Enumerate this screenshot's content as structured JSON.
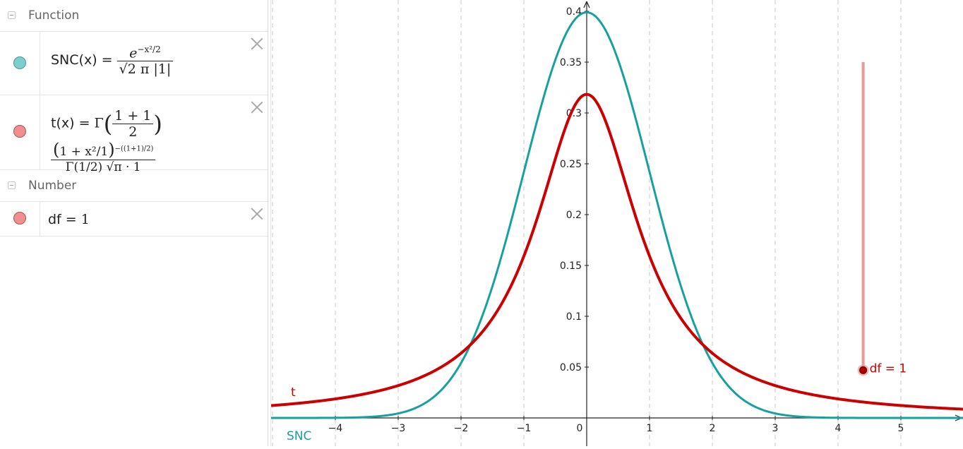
{
  "algebra": {
    "categories": [
      {
        "label": "Function"
      },
      {
        "label": "Number"
      }
    ],
    "items": [
      {
        "name": "SNC(x)",
        "equals": "=",
        "numerator_base": "e",
        "exponent": "−x²/2",
        "denominator": "√2 π |1|",
        "color": "#7ecece"
      },
      {
        "name": "t(x)",
        "equals": "=",
        "gamma": "Γ",
        "arg_top": "1 + 1",
        "arg_bottom": "2",
        "power_base": "1 + x²/1",
        "power_exp": "−((1+1)/2)",
        "denominator": "Γ(1/2) √π · 1",
        "color": "#f08f8f"
      },
      {
        "name": "df",
        "equals": "=",
        "value": "1",
        "color": "#f08f8f"
      }
    ]
  },
  "graphics": {
    "slider_label": "df = 1",
    "curve_labels": {
      "t": "t",
      "snc": "SNC"
    },
    "colors": {
      "snc": "#17a0a0",
      "t": "#cc0000",
      "slider": "#e89a9a"
    }
  },
  "chart_data": {
    "type": "line",
    "xlim": [
      -5,
      6
    ],
    "ylim": [
      -0.005,
      0.43
    ],
    "x_ticks": [
      "−4",
      "−3",
      "−2",
      "−1",
      "0",
      "1",
      "2",
      "3",
      "4",
      "5"
    ],
    "x_tick_values": [
      -4,
      -3,
      -2,
      -1,
      0,
      1,
      2,
      3,
      4,
      5
    ],
    "y_ticks": [
      "0.05",
      "0.1",
      "0.15",
      "0.2",
      "0.25",
      "0.3",
      "0.35",
      "0.4"
    ],
    "y_tick_values": [
      0.05,
      0.1,
      0.15,
      0.2,
      0.25,
      0.3,
      0.35,
      0.4
    ],
    "grid": "vertical-dashed",
    "series": [
      {
        "name": "SNC",
        "x": [
          -5,
          -4.5,
          -4,
          -3.5,
          -3,
          -2.5,
          -2,
          -1.5,
          -1,
          -0.5,
          0,
          0.5,
          1,
          1.5,
          2,
          2.5,
          3,
          3.5,
          4,
          4.5,
          5,
          5.5,
          6
        ],
        "y": [
          1.5e-06,
          1.6e-05,
          0.00013,
          0.00087,
          0.0044,
          0.0175,
          0.054,
          0.1295,
          0.242,
          0.352,
          0.399,
          0.352,
          0.242,
          0.1295,
          0.054,
          0.0175,
          0.0044,
          0.00087,
          0.00013,
          1.6e-05,
          1.5e-06,
          1e-07,
          0.0
        ]
      },
      {
        "name": "t",
        "x": [
          -5,
          -4.5,
          -4,
          -3.5,
          -3,
          -2.5,
          -2,
          -1.5,
          -1,
          -0.5,
          0,
          0.5,
          1,
          1.5,
          2,
          2.5,
          3,
          3.5,
          4,
          4.5,
          5,
          5.5,
          6
        ],
        "y": [
          0.0122,
          0.0149,
          0.0187,
          0.0241,
          0.0318,
          0.0439,
          0.0637,
          0.0979,
          0.159,
          0.255,
          0.318,
          0.255,
          0.159,
          0.0979,
          0.0637,
          0.0439,
          0.0318,
          0.0241,
          0.0187,
          0.0149,
          0.0122,
          0.0101,
          0.0086
        ]
      }
    ],
    "slider": {
      "value": 1,
      "x": 4.4,
      "y_bottom": 0.047,
      "y_top": 0.35
    }
  }
}
